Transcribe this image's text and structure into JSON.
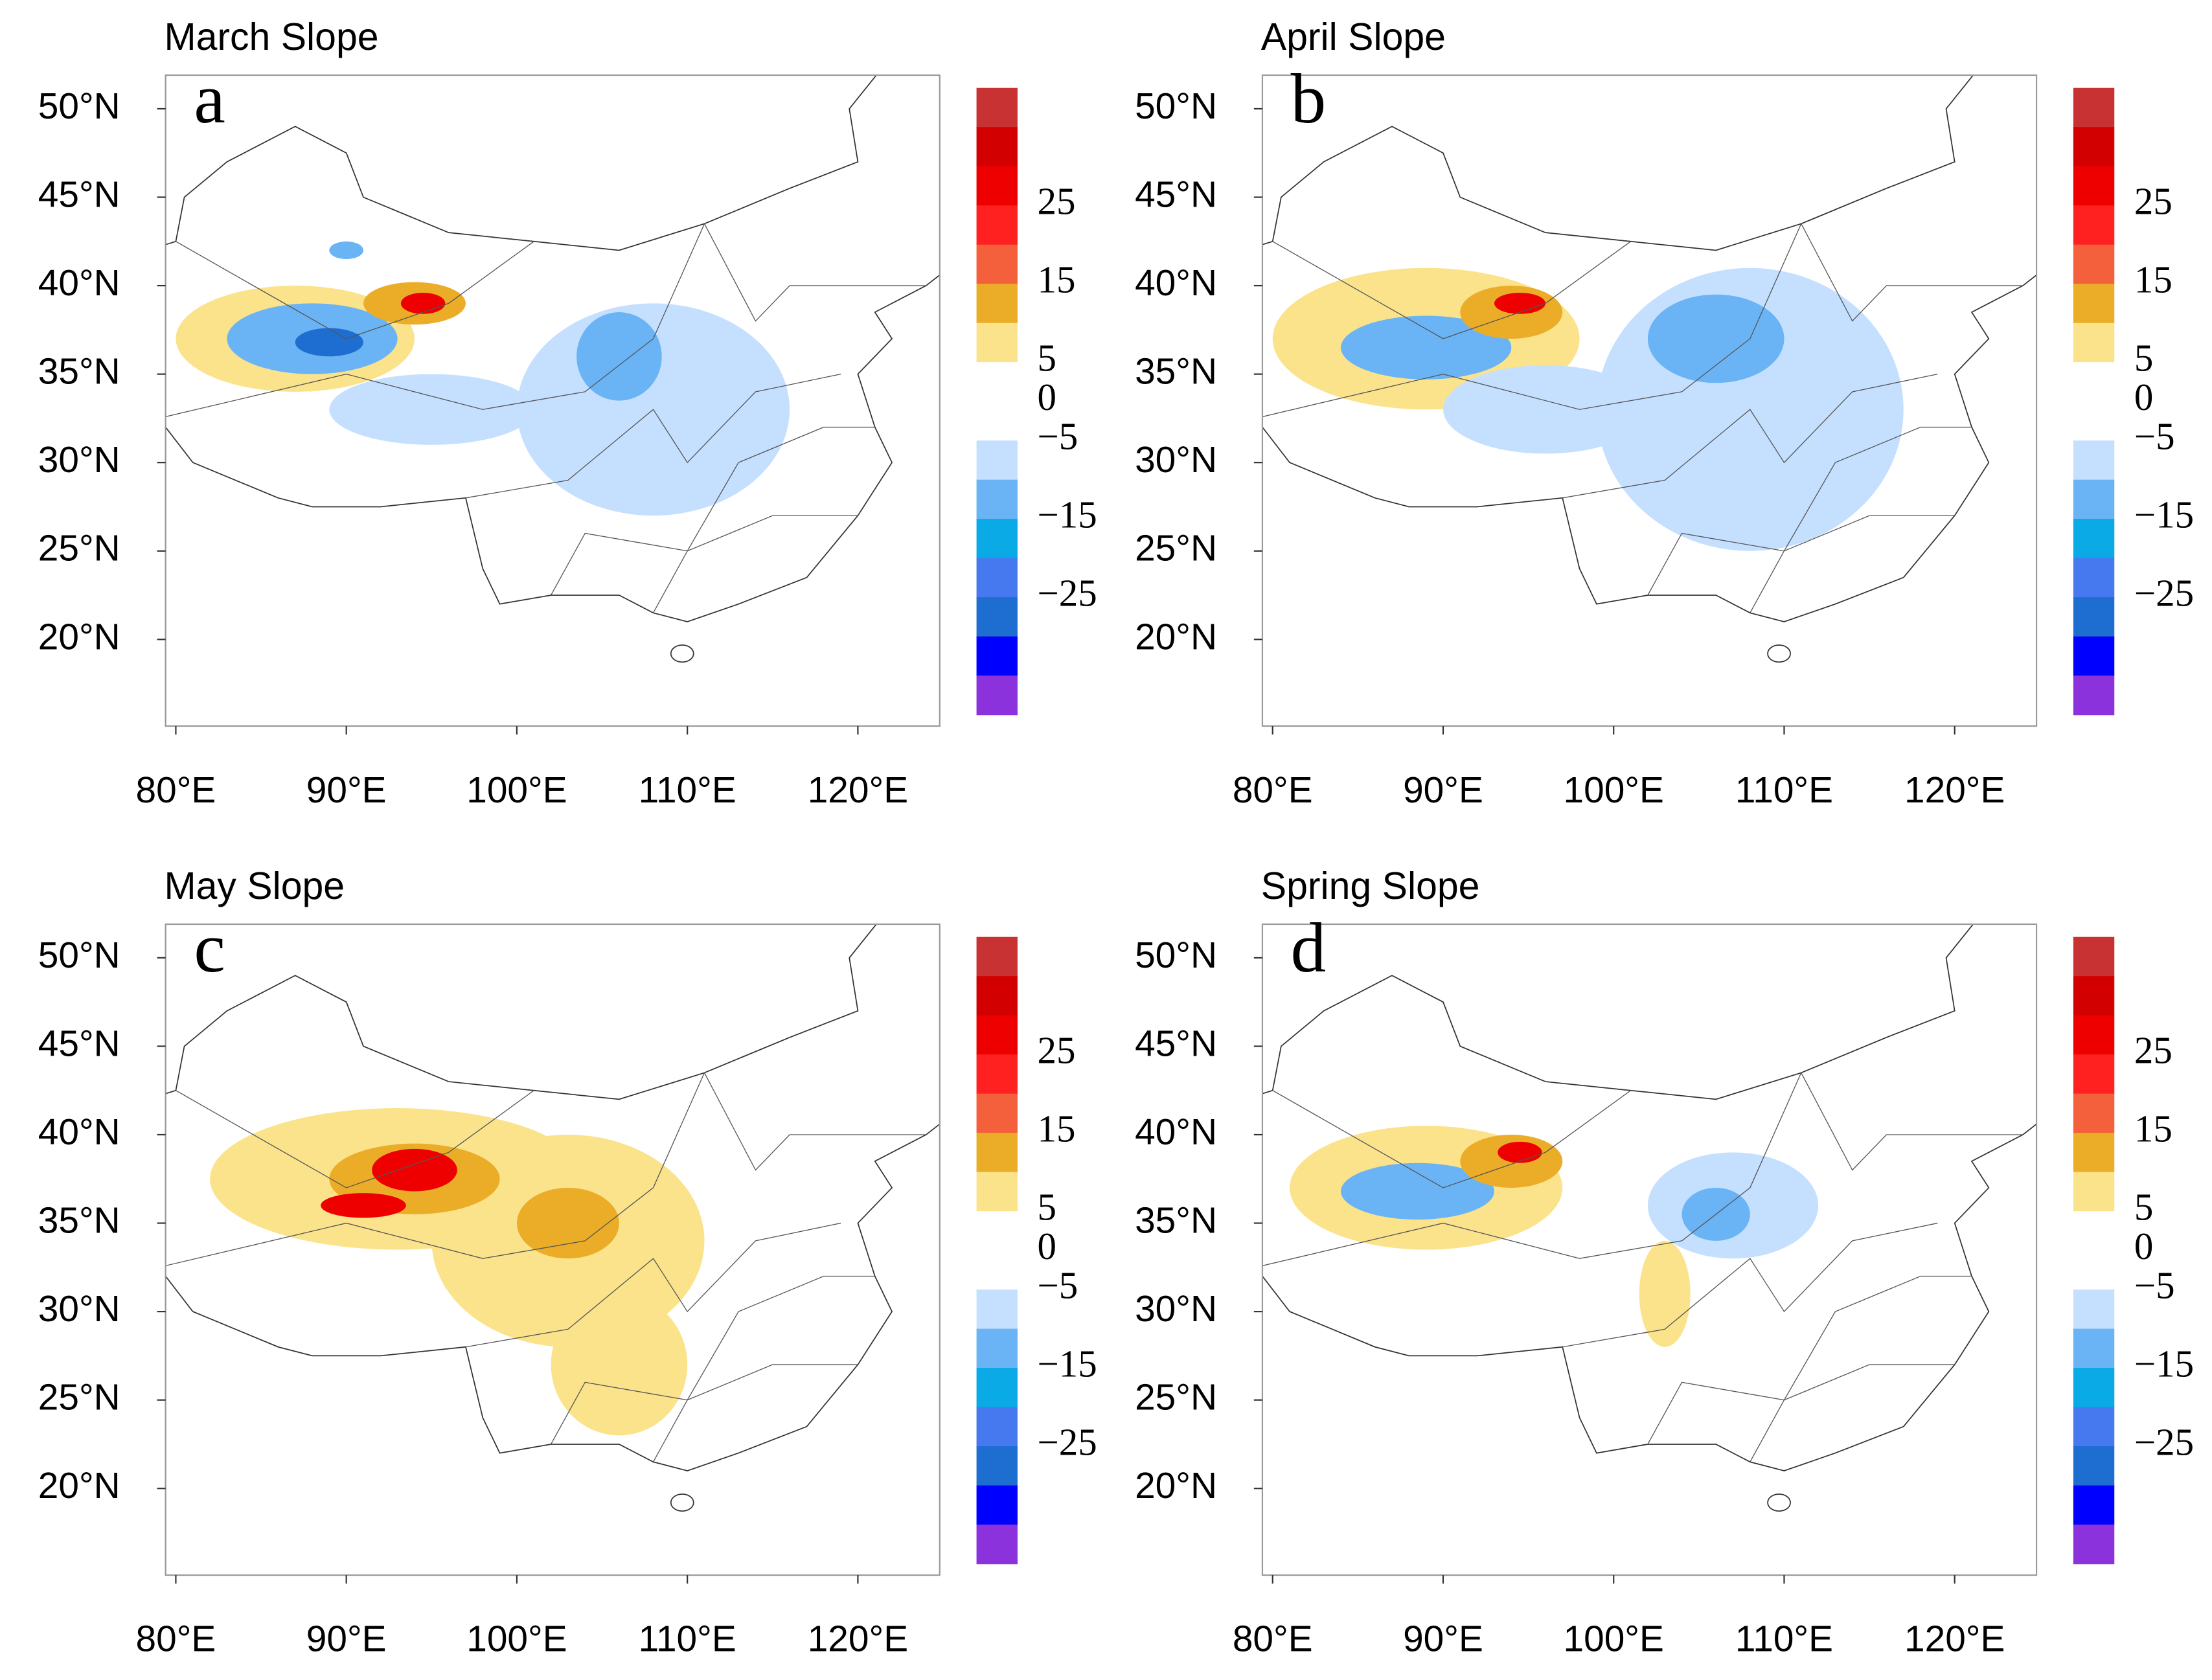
{
  "chart_data": [
    {
      "type": "map",
      "title": "March Slope",
      "panel_label": "a",
      "xlim": [
        79.4,
        124.8
      ],
      "ylim": [
        15.1,
        51.9
      ],
      "xticks": [
        {
          "value": 80,
          "label": "80°E"
        },
        {
          "value": 90,
          "label": "90°E"
        },
        {
          "value": 100,
          "label": "100°E"
        },
        {
          "value": 110,
          "label": "110°E"
        },
        {
          "value": 120,
          "label": "120°E"
        }
      ],
      "yticks": [
        {
          "value": 50,
          "label": "50°N"
        },
        {
          "value": 45,
          "label": "45°N"
        },
        {
          "value": 40,
          "label": "40°N"
        },
        {
          "value": 35,
          "label": "35°N"
        },
        {
          "value": 30,
          "label": "30°N"
        },
        {
          "value": 25,
          "label": "25°N"
        },
        {
          "value": 20,
          "label": "20°N"
        }
      ],
      "colorbar": {
        "lim": [
          -40,
          40
        ],
        "colors": [
          "#c83232",
          "#d20000",
          "#ee0000",
          "#ff2020",
          "#f5603c",
          "#ebad28",
          "#fbe38c",
          "#ffffff",
          "#ffffff",
          "#c5e0ff",
          "#6ab4f5",
          "#0aaae6",
          "#4678f0",
          "#1e6ed2",
          "#0000ff",
          "#8c32dc"
        ],
        "ticks": [
          25,
          15,
          5,
          0,
          {
            "value": -5,
            "label": "−5"
          },
          {
            "value": -15,
            "label": "−15"
          },
          {
            "value": -25,
            "label": "−25"
          }
        ]
      }
    },
    {
      "type": "map",
      "title": "April Slope",
      "panel_label": "b",
      "xlim": [
        79.4,
        124.8
      ],
      "ylim": [
        15.1,
        51.9
      ],
      "xticks": [
        {
          "value": 80,
          "label": "80°E"
        },
        {
          "value": 90,
          "label": "90°E"
        },
        {
          "value": 100,
          "label": "100°E"
        },
        {
          "value": 110,
          "label": "110°E"
        },
        {
          "value": 120,
          "label": "120°E"
        }
      ],
      "yticks": [
        {
          "value": 50,
          "label": "50°N"
        },
        {
          "value": 45,
          "label": "45°N"
        },
        {
          "value": 40,
          "label": "40°N"
        },
        {
          "value": 35,
          "label": "35°N"
        },
        {
          "value": 30,
          "label": "30°N"
        },
        {
          "value": 25,
          "label": "25°N"
        },
        {
          "value": 20,
          "label": "20°N"
        }
      ],
      "colorbar": {
        "lim": [
          -40,
          40
        ],
        "colors": [
          "#c83232",
          "#d20000",
          "#ee0000",
          "#ff2020",
          "#f5603c",
          "#ebad28",
          "#fbe38c",
          "#ffffff",
          "#ffffff",
          "#c5e0ff",
          "#6ab4f5",
          "#0aaae6",
          "#4678f0",
          "#1e6ed2",
          "#0000ff",
          "#8c32dc"
        ],
        "ticks": [
          25,
          15,
          5,
          0,
          {
            "value": -5,
            "label": "−5"
          },
          {
            "value": -15,
            "label": "−15"
          },
          {
            "value": -25,
            "label": "−25"
          }
        ]
      }
    },
    {
      "type": "map",
      "title": "May Slope",
      "panel_label": "c",
      "xlim": [
        79.4,
        124.8
      ],
      "ylim": [
        15.1,
        51.9
      ],
      "xticks": [
        {
          "value": 80,
          "label": "80°E"
        },
        {
          "value": 90,
          "label": "90°E"
        },
        {
          "value": 100,
          "label": "100°E"
        },
        {
          "value": 110,
          "label": "110°E"
        },
        {
          "value": 120,
          "label": "120°E"
        }
      ],
      "yticks": [
        {
          "value": 50,
          "label": "50°N"
        },
        {
          "value": 45,
          "label": "45°N"
        },
        {
          "value": 40,
          "label": "40°N"
        },
        {
          "value": 35,
          "label": "35°N"
        },
        {
          "value": 30,
          "label": "30°N"
        },
        {
          "value": 25,
          "label": "25°N"
        },
        {
          "value": 20,
          "label": "20°N"
        }
      ],
      "colorbar": {
        "lim": [
          -40,
          40
        ],
        "colors": [
          "#c83232",
          "#d20000",
          "#ee0000",
          "#ff2020",
          "#f5603c",
          "#ebad28",
          "#fbe38c",
          "#ffffff",
          "#ffffff",
          "#c5e0ff",
          "#6ab4f5",
          "#0aaae6",
          "#4678f0",
          "#1e6ed2",
          "#0000ff",
          "#8c32dc"
        ],
        "ticks": [
          25,
          15,
          5,
          0,
          {
            "value": -5,
            "label": "−5"
          },
          {
            "value": -15,
            "label": "−15"
          },
          {
            "value": -25,
            "label": "−25"
          }
        ]
      }
    },
    {
      "type": "map",
      "title": "Spring Slope",
      "panel_label": "d",
      "xlim": [
        79.4,
        124.8
      ],
      "ylim": [
        15.1,
        51.9
      ],
      "xticks": [
        {
          "value": 80,
          "label": "80°E"
        },
        {
          "value": 90,
          "label": "90°E"
        },
        {
          "value": 100,
          "label": "100°E"
        },
        {
          "value": 110,
          "label": "110°E"
        },
        {
          "value": 120,
          "label": "120°E"
        }
      ],
      "yticks": [
        {
          "value": 50,
          "label": "50°N"
        },
        {
          "value": 45,
          "label": "45°N"
        },
        {
          "value": 40,
          "label": "40°N"
        },
        {
          "value": 35,
          "label": "35°N"
        },
        {
          "value": 30,
          "label": "30°N"
        },
        {
          "value": 25,
          "label": "25°N"
        },
        {
          "value": 20,
          "label": "20°N"
        }
      ],
      "colorbar": {
        "lim": [
          -40,
          40
        ],
        "colors": [
          "#c83232",
          "#d20000",
          "#ee0000",
          "#ff2020",
          "#f5603c",
          "#ebad28",
          "#fbe38c",
          "#ffffff",
          "#ffffff",
          "#c5e0ff",
          "#6ab4f5",
          "#0aaae6",
          "#4678f0",
          "#1e6ed2",
          "#0000ff",
          "#8c32dc"
        ],
        "ticks": [
          25,
          15,
          5,
          0,
          {
            "value": -5,
            "label": "−5"
          },
          {
            "value": -15,
            "label": "−15"
          },
          {
            "value": -25,
            "label": "−25"
          }
        ]
      }
    }
  ]
}
